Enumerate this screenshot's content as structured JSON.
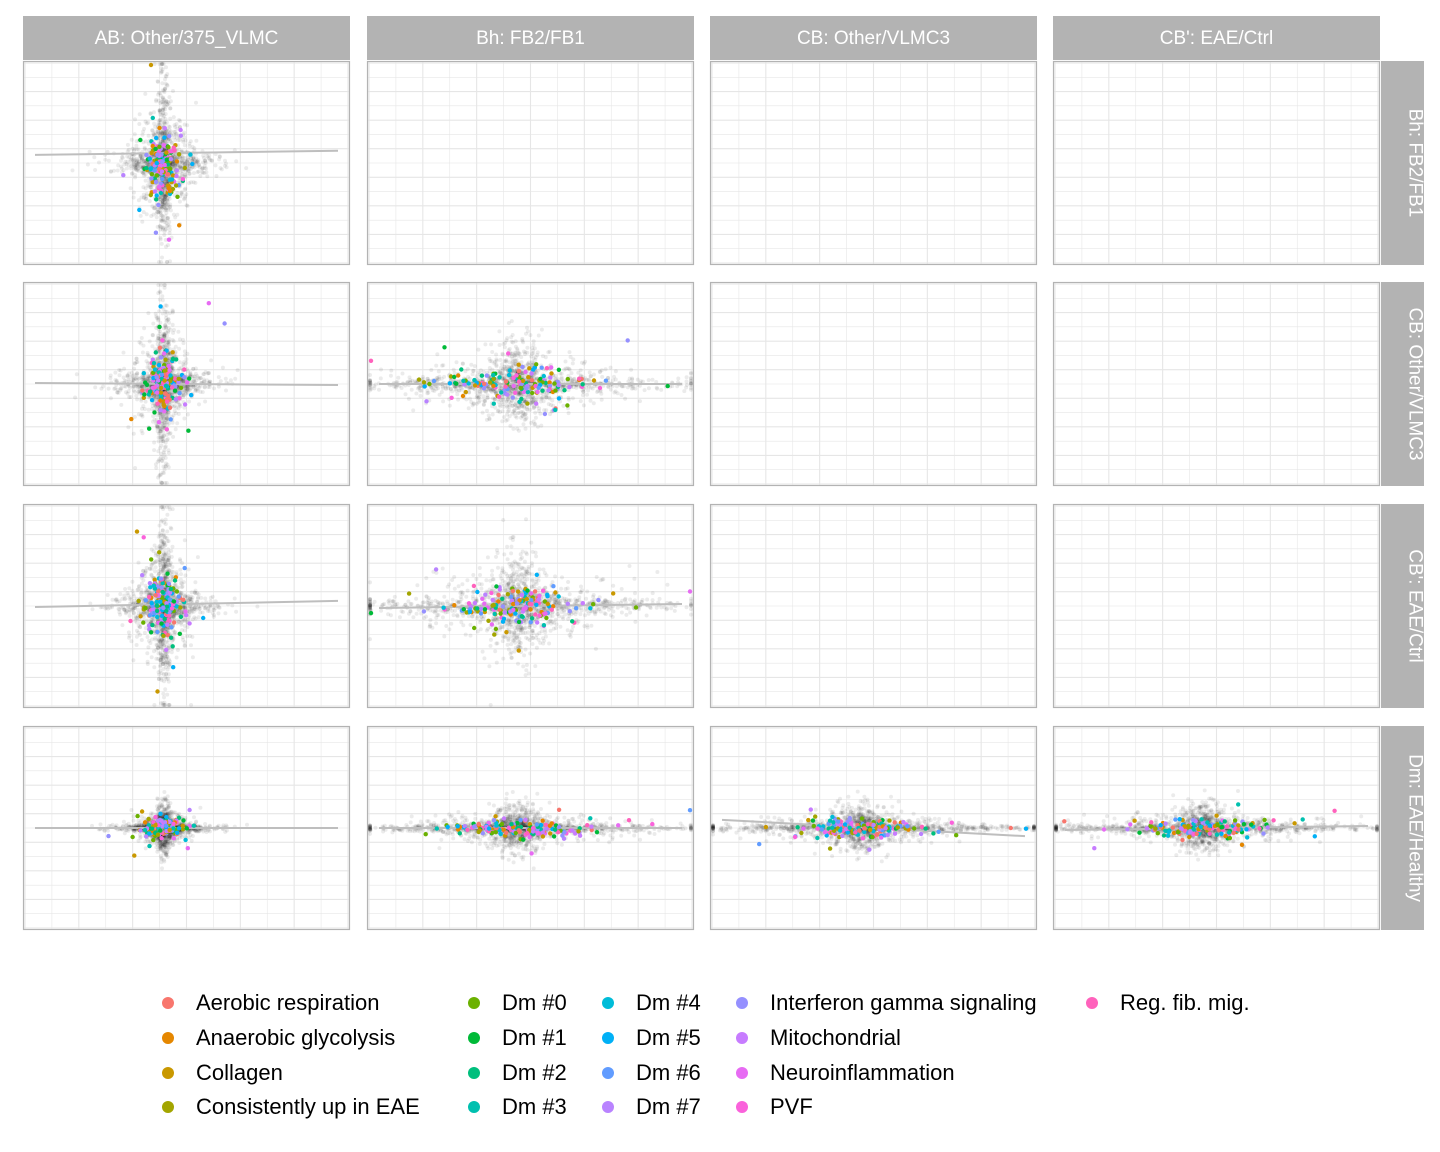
{
  "chart_data": {
    "type": "scatter",
    "layout": "faceted-grid",
    "grid": true,
    "column_strips": [
      "AB: Other/375_VLMC",
      "Bh: FB2/FB1",
      "CB: Other/VLMC3",
      "CB': EAE/Ctrl"
    ],
    "row_strips": [
      "Bh: FB2/FB1",
      "CB: Other/VLMC3",
      "CB': EAE/Ctrl",
      "Dm: EAE/Healthy"
    ],
    "background_points_color": "#000000",
    "fit_line_color": "#bebebe",
    "panels": [
      {
        "row": 0,
        "col": 0,
        "filled": true,
        "spread_x": 0.16,
        "spread_y": 0.42,
        "slope": 0.02,
        "intercept": 0.05
      },
      {
        "row": 0,
        "col": 1,
        "filled": false
      },
      {
        "row": 0,
        "col": 2,
        "filled": false
      },
      {
        "row": 0,
        "col": 3,
        "filled": false
      },
      {
        "row": 1,
        "col": 0,
        "filled": true,
        "spread_x": 0.16,
        "spread_y": 0.42,
        "slope": -0.01,
        "intercept": 0.0
      },
      {
        "row": 1,
        "col": 1,
        "filled": true,
        "spread_x": 0.55,
        "spread_y": 0.22,
        "slope": 0.0,
        "intercept": 0.0
      },
      {
        "row": 1,
        "col": 2,
        "filled": false
      },
      {
        "row": 1,
        "col": 3,
        "filled": false
      },
      {
        "row": 2,
        "col": 0,
        "filled": true,
        "spread_x": 0.16,
        "spread_y": 0.42,
        "slope": 0.03,
        "intercept": 0.01
      },
      {
        "row": 2,
        "col": 1,
        "filled": true,
        "spread_x": 0.55,
        "spread_y": 0.28,
        "slope": 0.02,
        "intercept": 0.0
      },
      {
        "row": 2,
        "col": 2,
        "filled": false
      },
      {
        "row": 2,
        "col": 3,
        "filled": false
      },
      {
        "row": 3,
        "col": 0,
        "filled": true,
        "spread_x": 0.16,
        "spread_y": 0.12,
        "slope": 0.0,
        "intercept": 0.0
      },
      {
        "row": 3,
        "col": 1,
        "filled": true,
        "spread_x": 0.55,
        "spread_y": 0.12,
        "slope": 0.0,
        "intercept": 0.0
      },
      {
        "row": 3,
        "col": 2,
        "filled": true,
        "spread_x": 0.55,
        "spread_y": 0.12,
        "slope": -0.08,
        "intercept": 0.0
      },
      {
        "row": 3,
        "col": 3,
        "filled": true,
        "spread_x": 0.55,
        "spread_y": 0.12,
        "slope": 0.02,
        "intercept": 0.0
      }
    ],
    "legend_position": "bottom",
    "legend": {
      "columns": [
        [
          {
            "label": "Aerobic respiration",
            "color": "#F8766D"
          },
          {
            "label": "Anaerobic glycolysis",
            "color": "#E58700"
          },
          {
            "label": "Collagen",
            "color": "#C99800"
          },
          {
            "label": "Consistently up in EAE",
            "color": "#A3A500"
          }
        ],
        [
          {
            "label": "Dm #0",
            "color": "#6BB100"
          },
          {
            "label": "Dm #1",
            "color": "#00BA38"
          },
          {
            "label": "Dm #2",
            "color": "#00BF7D"
          },
          {
            "label": "Dm #3",
            "color": "#00C0AF"
          }
        ],
        [
          {
            "label": "Dm #4",
            "color": "#00BCD8"
          },
          {
            "label": "Dm #5",
            "color": "#00B0F6"
          },
          {
            "label": "Dm #6",
            "color": "#619CFF"
          },
          {
            "label": "Dm #7",
            "color": "#B983FF"
          }
        ],
        [
          {
            "label": "Interferon gamma signaling",
            "color": "#9590FF"
          },
          {
            "label": "Mitochondrial",
            "color": "#C77CFF"
          },
          {
            "label": "Neuroinflammation",
            "color": "#E76BF3"
          },
          {
            "label": "PVF",
            "color": "#FA62DB"
          }
        ],
        [
          {
            "label": "Reg. fib. mig.",
            "color": "#FF62BC"
          }
        ]
      ]
    }
  },
  "strip_bg": "#b3b3b3",
  "strip_text_color": "#ffffff",
  "panel_border": "#b3b3b3",
  "grid_color": "#e6e6e6"
}
